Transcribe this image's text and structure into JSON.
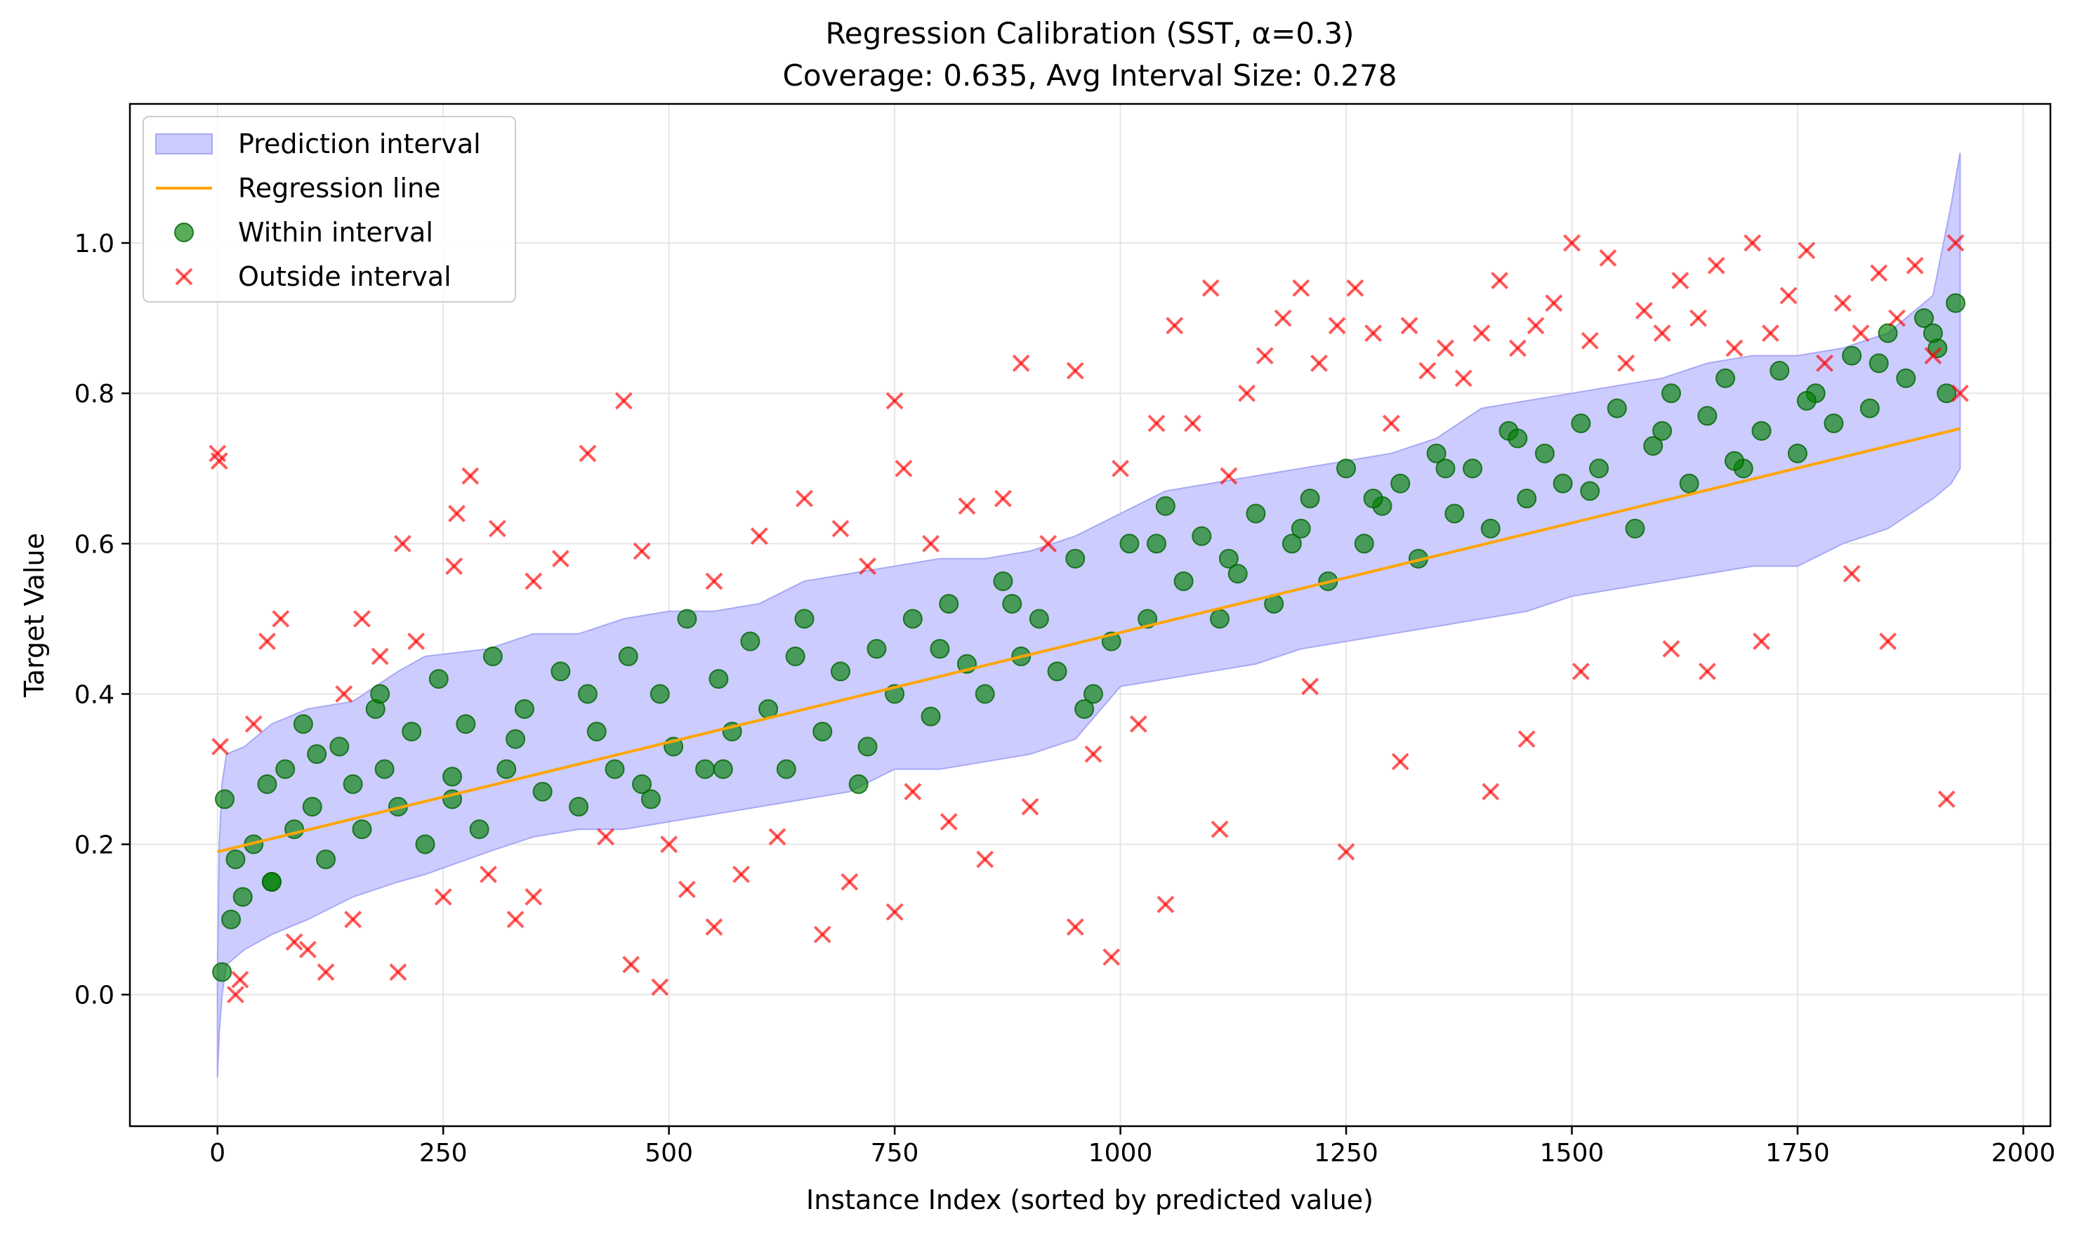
{
  "chart_data": {
    "type": "scatter",
    "title": "Regression Calibration (SST, α=0.3)",
    "subtitle": "Coverage: 0.635, Avg Interval Size: 0.278",
    "xlabel": "Instance Index (sorted by predicted value)",
    "ylabel": "Target Value",
    "xlim": [
      -97,
      2030
    ],
    "ylim": [
      -0.175,
      1.185
    ],
    "xticks": [
      0,
      250,
      500,
      750,
      1000,
      1250,
      1500,
      1750,
      2000
    ],
    "yticks": [
      0.0,
      0.2,
      0.4,
      0.6,
      0.8,
      1.0
    ],
    "xtick_labels": [
      "0",
      "250",
      "500",
      "750",
      "1000",
      "1250",
      "1500",
      "1750",
      "2000"
    ],
    "ytick_labels": [
      "0.0",
      "0.2",
      "0.4",
      "0.6",
      "0.8",
      "1.0"
    ],
    "grid": true,
    "legend_position": "top-left",
    "n_points": 1932,
    "colors": {
      "interval_fill": "#ccccff",
      "interval_edge": "#a8a8f5",
      "regression": "#ffa500",
      "within": "#008000",
      "outside": "#ff0000"
    },
    "series": [
      {
        "name": "Prediction interval",
        "kind": "band",
        "x": [
          0,
          2,
          5,
          10,
          30,
          60,
          100,
          150,
          200,
          230,
          300,
          350,
          400,
          450,
          500,
          550,
          600,
          650,
          700,
          750,
          800,
          850,
          900,
          950,
          1000,
          1050,
          1100,
          1150,
          1200,
          1250,
          1300,
          1350,
          1400,
          1450,
          1500,
          1550,
          1600,
          1650,
          1700,
          1750,
          1800,
          1850,
          1900,
          1920,
          1930
        ],
        "lower": [
          -0.11,
          -0.05,
          0.0,
          0.04,
          0.06,
          0.08,
          0.1,
          0.13,
          0.15,
          0.16,
          0.19,
          0.21,
          0.22,
          0.22,
          0.23,
          0.24,
          0.25,
          0.26,
          0.27,
          0.3,
          0.3,
          0.31,
          0.32,
          0.34,
          0.41,
          0.42,
          0.43,
          0.44,
          0.46,
          0.47,
          0.48,
          0.49,
          0.5,
          0.51,
          0.53,
          0.54,
          0.55,
          0.56,
          0.57,
          0.57,
          0.6,
          0.62,
          0.66,
          0.68,
          0.7
        ],
        "upper": [
          0.03,
          0.2,
          0.28,
          0.32,
          0.33,
          0.36,
          0.38,
          0.39,
          0.43,
          0.45,
          0.46,
          0.48,
          0.48,
          0.5,
          0.51,
          0.51,
          0.52,
          0.55,
          0.56,
          0.57,
          0.58,
          0.58,
          0.59,
          0.61,
          0.64,
          0.67,
          0.68,
          0.69,
          0.7,
          0.71,
          0.72,
          0.74,
          0.78,
          0.79,
          0.8,
          0.81,
          0.82,
          0.84,
          0.85,
          0.85,
          0.86,
          0.88,
          0.93,
          1.05,
          1.12
        ]
      },
      {
        "name": "Regression line",
        "kind": "line",
        "x": [
          0,
          1930
        ],
        "y": [
          0.19,
          0.753
        ]
      },
      {
        "name": "Within interval",
        "kind": "scatter",
        "marker": "circle",
        "x": [
          5,
          8,
          15,
          20,
          28,
          40,
          55,
          60,
          75,
          85,
          95,
          105,
          120,
          135,
          150,
          160,
          175,
          185,
          200,
          215,
          230,
          245,
          260,
          275,
          290,
          305,
          320,
          340,
          360,
          380,
          400,
          420,
          440,
          455,
          470,
          490,
          505,
          520,
          540,
          555,
          570,
          590,
          610,
          630,
          650,
          670,
          690,
          710,
          730,
          750,
          770,
          790,
          810,
          830,
          850,
          870,
          890,
          910,
          930,
          950,
          970,
          990,
          1010,
          1030,
          1050,
          1070,
          1090,
          1110,
          1130,
          1150,
          1170,
          1190,
          1210,
          1230,
          1250,
          1270,
          1290,
          1310,
          1330,
          1350,
          1370,
          1390,
          1410,
          1430,
          1450,
          1470,
          1490,
          1510,
          1530,
          1550,
          1570,
          1590,
          1610,
          1630,
          1650,
          1670,
          1690,
          1710,
          1730,
          1750,
          1770,
          1790,
          1810,
          1830,
          1850,
          1870,
          1890,
          1905,
          1915,
          1925,
          60,
          110,
          180,
          260,
          330,
          410,
          480,
          560,
          640,
          720,
          800,
          880,
          960,
          1040,
          1120,
          1200,
          1280,
          1360,
          1440,
          1520,
          1600,
          1680,
          1760,
          1840,
          1900
        ],
        "y": [
          0.03,
          0.26,
          0.1,
          0.18,
          0.13,
          0.2,
          0.28,
          0.15,
          0.3,
          0.22,
          0.36,
          0.25,
          0.18,
          0.33,
          0.28,
          0.22,
          0.38,
          0.3,
          0.25,
          0.35,
          0.2,
          0.42,
          0.29,
          0.36,
          0.22,
          0.45,
          0.3,
          0.38,
          0.27,
          0.43,
          0.25,
          0.35,
          0.3,
          0.45,
          0.28,
          0.4,
          0.33,
          0.5,
          0.3,
          0.42,
          0.35,
          0.47,
          0.38,
          0.3,
          0.5,
          0.35,
          0.43,
          0.28,
          0.46,
          0.4,
          0.5,
          0.37,
          0.52,
          0.44,
          0.4,
          0.55,
          0.45,
          0.5,
          0.43,
          0.58,
          0.4,
          0.47,
          0.6,
          0.5,
          0.65,
          0.55,
          0.61,
          0.5,
          0.56,
          0.64,
          0.52,
          0.6,
          0.66,
          0.55,
          0.7,
          0.6,
          0.65,
          0.68,
          0.58,
          0.72,
          0.64,
          0.7,
          0.62,
          0.75,
          0.66,
          0.72,
          0.68,
          0.76,
          0.7,
          0.78,
          0.62,
          0.73,
          0.8,
          0.68,
          0.77,
          0.82,
          0.7,
          0.75,
          0.83,
          0.72,
          0.8,
          0.76,
          0.85,
          0.78,
          0.88,
          0.82,
          0.9,
          0.86,
          0.8,
          0.92,
          0.15,
          0.32,
          0.4,
          0.26,
          0.34,
          0.4,
          0.26,
          0.3,
          0.45,
          0.33,
          0.46,
          0.52,
          0.38,
          0.6,
          0.58,
          0.62,
          0.66,
          0.7,
          0.74,
          0.67,
          0.75,
          0.71,
          0.79,
          0.84,
          0.88
        ]
      },
      {
        "name": "Outside interval",
        "kind": "scatter",
        "marker": "x",
        "x": [
          0,
          2,
          3,
          20,
          25,
          40,
          55,
          70,
          85,
          100,
          120,
          140,
          160,
          180,
          200,
          205,
          220,
          250,
          262,
          265,
          280,
          300,
          310,
          330,
          350,
          380,
          410,
          430,
          450,
          458,
          470,
          490,
          500,
          520,
          550,
          580,
          600,
          620,
          650,
          670,
          690,
          700,
          720,
          750,
          760,
          770,
          790,
          810,
          830,
          850,
          870,
          890,
          900,
          920,
          950,
          970,
          990,
          1000,
          1020,
          1040,
          1060,
          1080,
          1100,
          1120,
          1140,
          1160,
          1180,
          1200,
          1220,
          1240,
          1260,
          1280,
          1300,
          1320,
          1340,
          1360,
          1380,
          1400,
          1420,
          1440,
          1460,
          1480,
          1500,
          1520,
          1540,
          1560,
          1580,
          1600,
          1620,
          1640,
          1660,
          1680,
          1700,
          1720,
          1740,
          1760,
          1780,
          1800,
          1820,
          1840,
          1860,
          1880,
          1900,
          1915,
          1925,
          1930,
          1110,
          1210,
          1310,
          1410,
          1510,
          1610,
          1710,
          1810,
          150,
          350,
          550,
          750,
          950,
          1050,
          1250,
          1450,
          1650,
          1850
        ],
        "y": [
          0.72,
          0.71,
          0.33,
          0.0,
          0.02,
          0.36,
          0.47,
          0.5,
          0.07,
          0.06,
          0.03,
          0.4,
          0.5,
          0.45,
          0.03,
          0.6,
          0.47,
          0.13,
          0.57,
          0.64,
          0.69,
          0.16,
          0.62,
          0.1,
          0.55,
          0.58,
          0.72,
          0.21,
          0.79,
          0.04,
          0.59,
          0.01,
          0.2,
          0.14,
          0.55,
          0.16,
          0.61,
          0.21,
          0.66,
          0.08,
          0.62,
          0.15,
          0.57,
          0.79,
          0.7,
          0.27,
          0.6,
          0.23,
          0.65,
          0.18,
          0.66,
          0.84,
          0.25,
          0.6,
          0.83,
          0.32,
          0.05,
          0.7,
          0.36,
          0.76,
          0.89,
          0.76,
          0.94,
          0.69,
          0.8,
          0.85,
          0.9,
          0.94,
          0.84,
          0.89,
          0.94,
          0.88,
          0.76,
          0.89,
          0.83,
          0.86,
          0.82,
          0.88,
          0.95,
          0.86,
          0.89,
          0.92,
          1.0,
          0.87,
          0.98,
          0.84,
          0.91,
          0.88,
          0.95,
          0.9,
          0.97,
          0.86,
          1.0,
          0.88,
          0.93,
          0.99,
          0.84,
          0.92,
          0.88,
          0.96,
          0.9,
          0.97,
          0.85,
          0.26,
          1.0,
          0.8,
          0.22,
          0.41,
          0.31,
          0.27,
          0.43,
          0.46,
          0.47,
          0.56,
          0.1,
          0.13,
          0.09,
          0.11,
          0.09,
          0.12,
          0.19,
          0.34,
          0.43,
          0.47
        ]
      }
    ]
  }
}
